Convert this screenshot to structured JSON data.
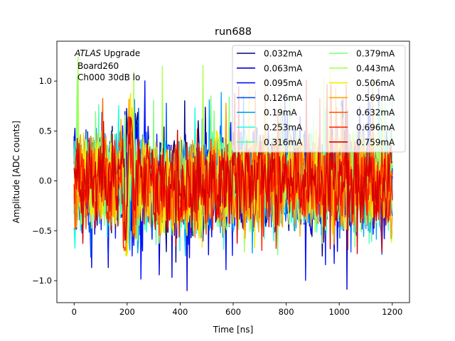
{
  "chart_data": {
    "type": "line",
    "title": "run688",
    "xlabel": "Time [ns]",
    "ylabel": "Amplitude [ADC counts]",
    "xlim": [
      -65,
      1265
    ],
    "ylim": [
      -1.22,
      1.4
    ],
    "xticks": [
      0,
      200,
      400,
      600,
      800,
      1000,
      1200
    ],
    "yticks": [
      -1.0,
      -0.5,
      0.0,
      0.5,
      1.0
    ],
    "xtick_labels": [
      "0",
      "200",
      "400",
      "600",
      "800",
      "1000",
      "1200"
    ],
    "ytick_labels": [
      "−1.0",
      "−0.5",
      "0.0",
      "0.5",
      "1.0"
    ],
    "annotation": {
      "atlas": "ATLAS",
      "line1_rest": " Upgrade",
      "line2": "Board260",
      "line3": "Ch000 30dB lo"
    },
    "legend_position": "top-right",
    "legend_columns": 2,
    "series": [
      {
        "name": "0.032mA",
        "color": "#00007f",
        "amplitude": 0.4,
        "peak_x": 225,
        "peak_y": 0.95,
        "trough_y": -0.85
      },
      {
        "name": "0.063mA",
        "color": "#0000d6",
        "amplitude": 0.45,
        "peak_x": 230,
        "peak_y": 1.0,
        "trough_y": -1.1
      },
      {
        "name": "0.095mA",
        "color": "#0010ff",
        "amplitude": 0.48,
        "peak_x": 230,
        "peak_y": 1.05,
        "trough_y": -1.05
      },
      {
        "name": "0.126mA",
        "color": "#0058ff",
        "amplitude": 0.45,
        "peak_x": 220,
        "peak_y": 0.95,
        "trough_y": -0.8
      },
      {
        "name": "0.19mA",
        "color": "#00a4ff",
        "amplitude": 0.42,
        "peak_x": 215,
        "peak_y": 0.9,
        "trough_y": -0.75
      },
      {
        "name": "0.253mA",
        "color": "#19ffde",
        "amplitude": 0.4,
        "peak_x": 210,
        "peak_y": 0.9,
        "trough_y": -0.7
      },
      {
        "name": "0.316mA",
        "color": "#4effa9",
        "amplitude": 0.4,
        "peak_x": 210,
        "peak_y": 0.95,
        "trough_y": -0.7
      },
      {
        "name": "0.379mA",
        "color": "#7cff79",
        "amplitude": 0.4,
        "peak_x": 210,
        "peak_y": 1.05,
        "trough_y": -0.8
      },
      {
        "name": "0.443mA",
        "color": "#a9ff4e",
        "amplitude": 0.4,
        "peak_x": 205,
        "peak_y": 1.25,
        "trough_y": -0.75
      },
      {
        "name": "0.506mA",
        "color": "#ffe500",
        "amplitude": 0.42,
        "peak_x": 205,
        "peak_y": 1.1,
        "trough_y": -0.75
      },
      {
        "name": "0.569mA",
        "color": "#ffa400",
        "amplitude": 0.4,
        "peak_x": 200,
        "peak_y": 1.05,
        "trough_y": -0.7
      },
      {
        "name": "0.632mA",
        "color": "#ff6400",
        "amplitude": 0.38,
        "peak_x": 200,
        "peak_y": 1.0,
        "trough_y": -0.7
      },
      {
        "name": "0.696mA",
        "color": "#ff1d00",
        "amplitude": 0.36,
        "peak_x": 200,
        "peak_y": 1.0,
        "trough_y": -0.7
      },
      {
        "name": "0.759mA",
        "color": "#d60000",
        "amplitude": 0.35,
        "peak_x": 205,
        "peak_y": 1.05,
        "trough_y": -0.75
      }
    ]
  }
}
